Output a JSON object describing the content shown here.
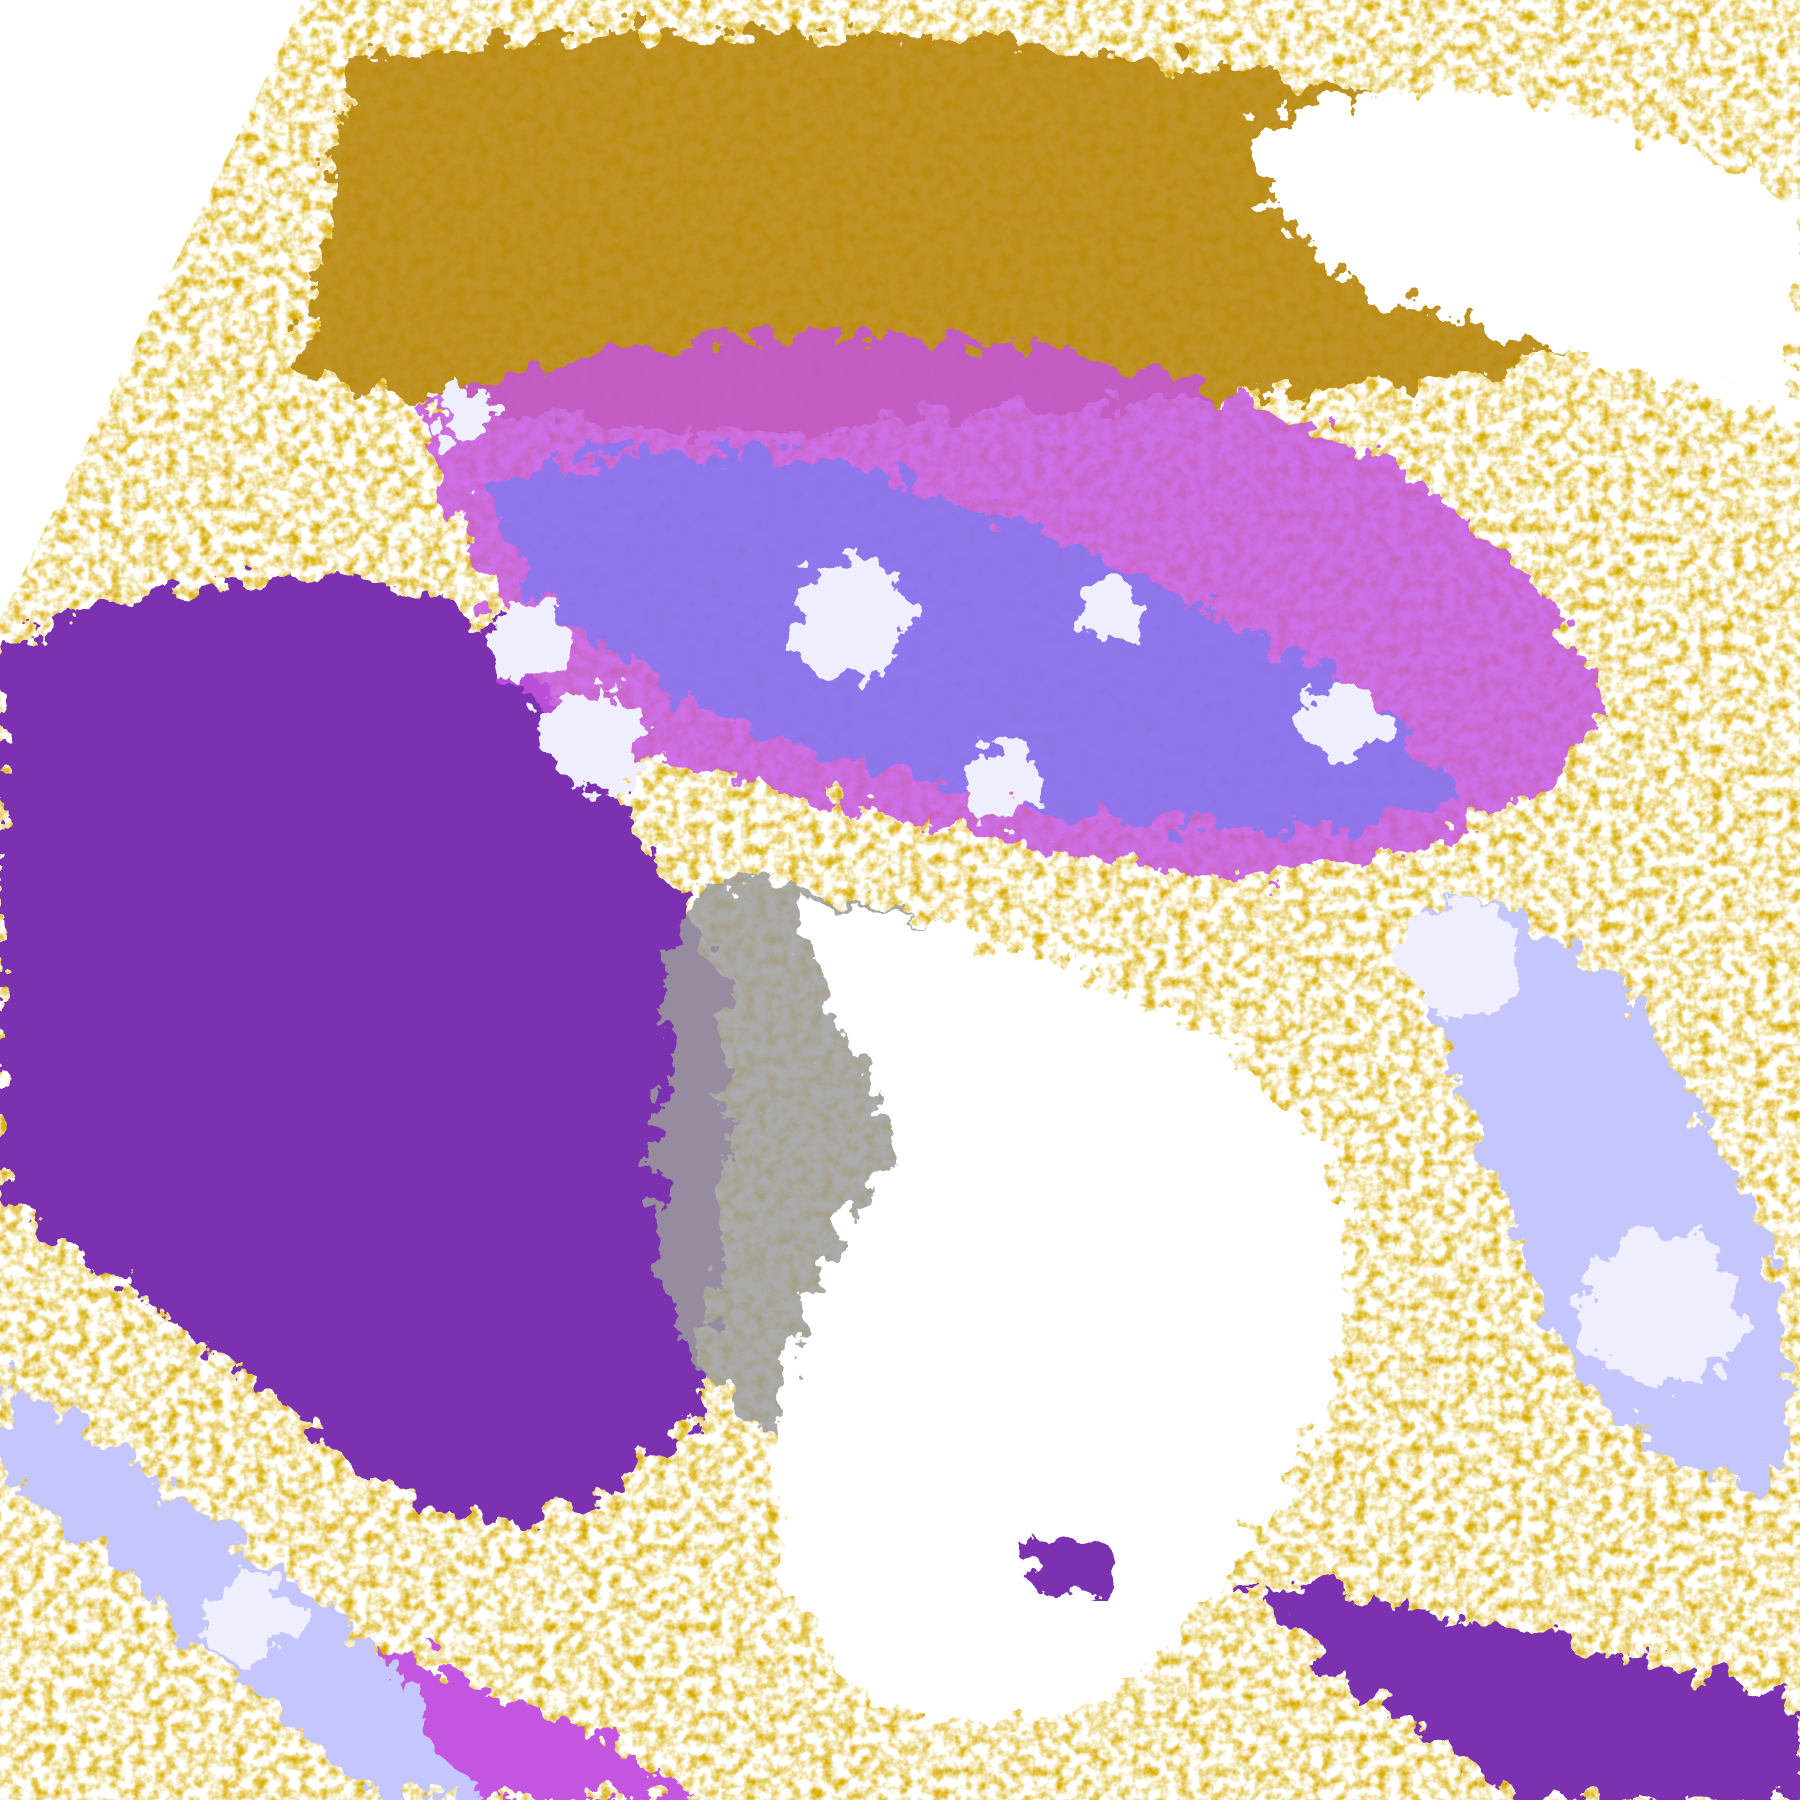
{
  "image": {
    "kind": "satellite cloud-type classification",
    "colors": {
      "background": "#ffffff",
      "gold": "#d9ad00",
      "dark_gold": "#b8870b",
      "purple": "#7b30b0",
      "magenta": "#c455e0",
      "blue_violet": "#7b7bf0",
      "lavender": "#c6c6ff",
      "pale": "#eeeeff",
      "gray": "#9c9c9c"
    }
  }
}
